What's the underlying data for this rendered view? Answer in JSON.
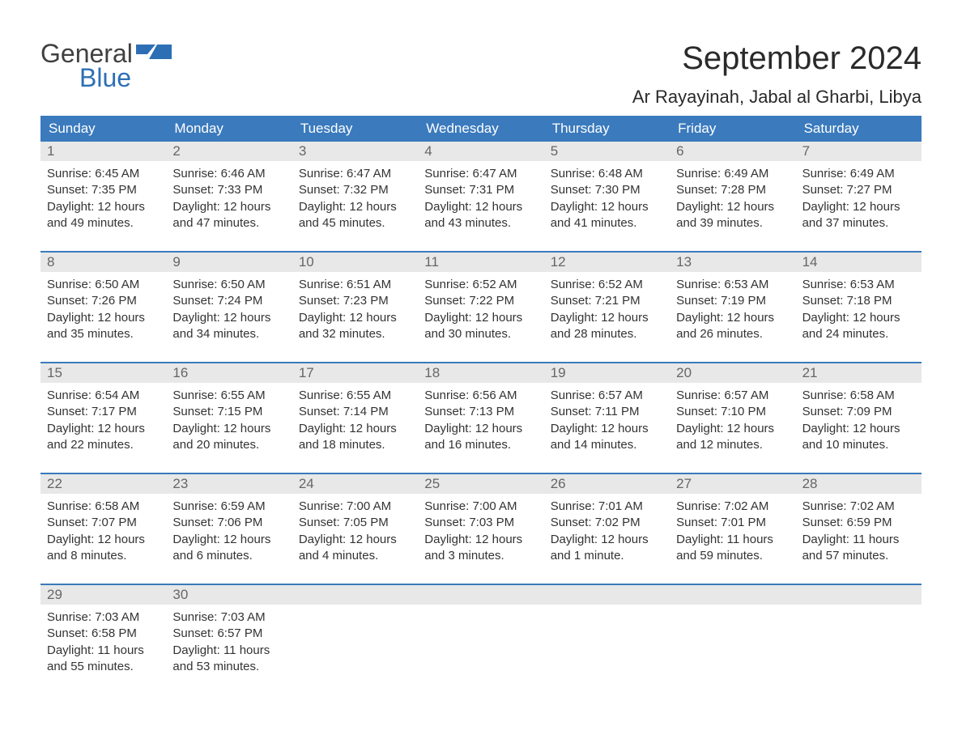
{
  "logo": {
    "line1": "General",
    "line2": "Blue"
  },
  "title": "September 2024",
  "location": "Ar Rayayinah, Jabal al Gharbi, Libya",
  "colors": {
    "header_bg": "#3a7abd",
    "header_text": "#ffffff",
    "day_number_bg": "#e8e8e8",
    "day_number_text": "#666666",
    "body_text": "#333333",
    "week_border": "#3a7abd",
    "logo_blue": "#2d6fb5"
  },
  "day_names": [
    "Sunday",
    "Monday",
    "Tuesday",
    "Wednesday",
    "Thursday",
    "Friday",
    "Saturday"
  ],
  "weeks": [
    [
      {
        "n": "1",
        "sunrise": "Sunrise: 6:45 AM",
        "sunset": "Sunset: 7:35 PM",
        "d1": "Daylight: 12 hours",
        "d2": "and 49 minutes."
      },
      {
        "n": "2",
        "sunrise": "Sunrise: 6:46 AM",
        "sunset": "Sunset: 7:33 PM",
        "d1": "Daylight: 12 hours",
        "d2": "and 47 minutes."
      },
      {
        "n": "3",
        "sunrise": "Sunrise: 6:47 AM",
        "sunset": "Sunset: 7:32 PM",
        "d1": "Daylight: 12 hours",
        "d2": "and 45 minutes."
      },
      {
        "n": "4",
        "sunrise": "Sunrise: 6:47 AM",
        "sunset": "Sunset: 7:31 PM",
        "d1": "Daylight: 12 hours",
        "d2": "and 43 minutes."
      },
      {
        "n": "5",
        "sunrise": "Sunrise: 6:48 AM",
        "sunset": "Sunset: 7:30 PM",
        "d1": "Daylight: 12 hours",
        "d2": "and 41 minutes."
      },
      {
        "n": "6",
        "sunrise": "Sunrise: 6:49 AM",
        "sunset": "Sunset: 7:28 PM",
        "d1": "Daylight: 12 hours",
        "d2": "and 39 minutes."
      },
      {
        "n": "7",
        "sunrise": "Sunrise: 6:49 AM",
        "sunset": "Sunset: 7:27 PM",
        "d1": "Daylight: 12 hours",
        "d2": "and 37 minutes."
      }
    ],
    [
      {
        "n": "8",
        "sunrise": "Sunrise: 6:50 AM",
        "sunset": "Sunset: 7:26 PM",
        "d1": "Daylight: 12 hours",
        "d2": "and 35 minutes."
      },
      {
        "n": "9",
        "sunrise": "Sunrise: 6:50 AM",
        "sunset": "Sunset: 7:24 PM",
        "d1": "Daylight: 12 hours",
        "d2": "and 34 minutes."
      },
      {
        "n": "10",
        "sunrise": "Sunrise: 6:51 AM",
        "sunset": "Sunset: 7:23 PM",
        "d1": "Daylight: 12 hours",
        "d2": "and 32 minutes."
      },
      {
        "n": "11",
        "sunrise": "Sunrise: 6:52 AM",
        "sunset": "Sunset: 7:22 PM",
        "d1": "Daylight: 12 hours",
        "d2": "and 30 minutes."
      },
      {
        "n": "12",
        "sunrise": "Sunrise: 6:52 AM",
        "sunset": "Sunset: 7:21 PM",
        "d1": "Daylight: 12 hours",
        "d2": "and 28 minutes."
      },
      {
        "n": "13",
        "sunrise": "Sunrise: 6:53 AM",
        "sunset": "Sunset: 7:19 PM",
        "d1": "Daylight: 12 hours",
        "d2": "and 26 minutes."
      },
      {
        "n": "14",
        "sunrise": "Sunrise: 6:53 AM",
        "sunset": "Sunset: 7:18 PM",
        "d1": "Daylight: 12 hours",
        "d2": "and 24 minutes."
      }
    ],
    [
      {
        "n": "15",
        "sunrise": "Sunrise: 6:54 AM",
        "sunset": "Sunset: 7:17 PM",
        "d1": "Daylight: 12 hours",
        "d2": "and 22 minutes."
      },
      {
        "n": "16",
        "sunrise": "Sunrise: 6:55 AM",
        "sunset": "Sunset: 7:15 PM",
        "d1": "Daylight: 12 hours",
        "d2": "and 20 minutes."
      },
      {
        "n": "17",
        "sunrise": "Sunrise: 6:55 AM",
        "sunset": "Sunset: 7:14 PM",
        "d1": "Daylight: 12 hours",
        "d2": "and 18 minutes."
      },
      {
        "n": "18",
        "sunrise": "Sunrise: 6:56 AM",
        "sunset": "Sunset: 7:13 PM",
        "d1": "Daylight: 12 hours",
        "d2": "and 16 minutes."
      },
      {
        "n": "19",
        "sunrise": "Sunrise: 6:57 AM",
        "sunset": "Sunset: 7:11 PM",
        "d1": "Daylight: 12 hours",
        "d2": "and 14 minutes."
      },
      {
        "n": "20",
        "sunrise": "Sunrise: 6:57 AM",
        "sunset": "Sunset: 7:10 PM",
        "d1": "Daylight: 12 hours",
        "d2": "and 12 minutes."
      },
      {
        "n": "21",
        "sunrise": "Sunrise: 6:58 AM",
        "sunset": "Sunset: 7:09 PM",
        "d1": "Daylight: 12 hours",
        "d2": "and 10 minutes."
      }
    ],
    [
      {
        "n": "22",
        "sunrise": "Sunrise: 6:58 AM",
        "sunset": "Sunset: 7:07 PM",
        "d1": "Daylight: 12 hours",
        "d2": "and 8 minutes."
      },
      {
        "n": "23",
        "sunrise": "Sunrise: 6:59 AM",
        "sunset": "Sunset: 7:06 PM",
        "d1": "Daylight: 12 hours",
        "d2": "and 6 minutes."
      },
      {
        "n": "24",
        "sunrise": "Sunrise: 7:00 AM",
        "sunset": "Sunset: 7:05 PM",
        "d1": "Daylight: 12 hours",
        "d2": "and 4 minutes."
      },
      {
        "n": "25",
        "sunrise": "Sunrise: 7:00 AM",
        "sunset": "Sunset: 7:03 PM",
        "d1": "Daylight: 12 hours",
        "d2": "and 3 minutes."
      },
      {
        "n": "26",
        "sunrise": "Sunrise: 7:01 AM",
        "sunset": "Sunset: 7:02 PM",
        "d1": "Daylight: 12 hours",
        "d2": "and 1 minute."
      },
      {
        "n": "27",
        "sunrise": "Sunrise: 7:02 AM",
        "sunset": "Sunset: 7:01 PM",
        "d1": "Daylight: 11 hours",
        "d2": "and 59 minutes."
      },
      {
        "n": "28",
        "sunrise": "Sunrise: 7:02 AM",
        "sunset": "Sunset: 6:59 PM",
        "d1": "Daylight: 11 hours",
        "d2": "and 57 minutes."
      }
    ],
    [
      {
        "n": "29",
        "sunrise": "Sunrise: 7:03 AM",
        "sunset": "Sunset: 6:58 PM",
        "d1": "Daylight: 11 hours",
        "d2": "and 55 minutes."
      },
      {
        "n": "30",
        "sunrise": "Sunrise: 7:03 AM",
        "sunset": "Sunset: 6:57 PM",
        "d1": "Daylight: 11 hours",
        "d2": "and 53 minutes."
      },
      null,
      null,
      null,
      null,
      null
    ]
  ]
}
